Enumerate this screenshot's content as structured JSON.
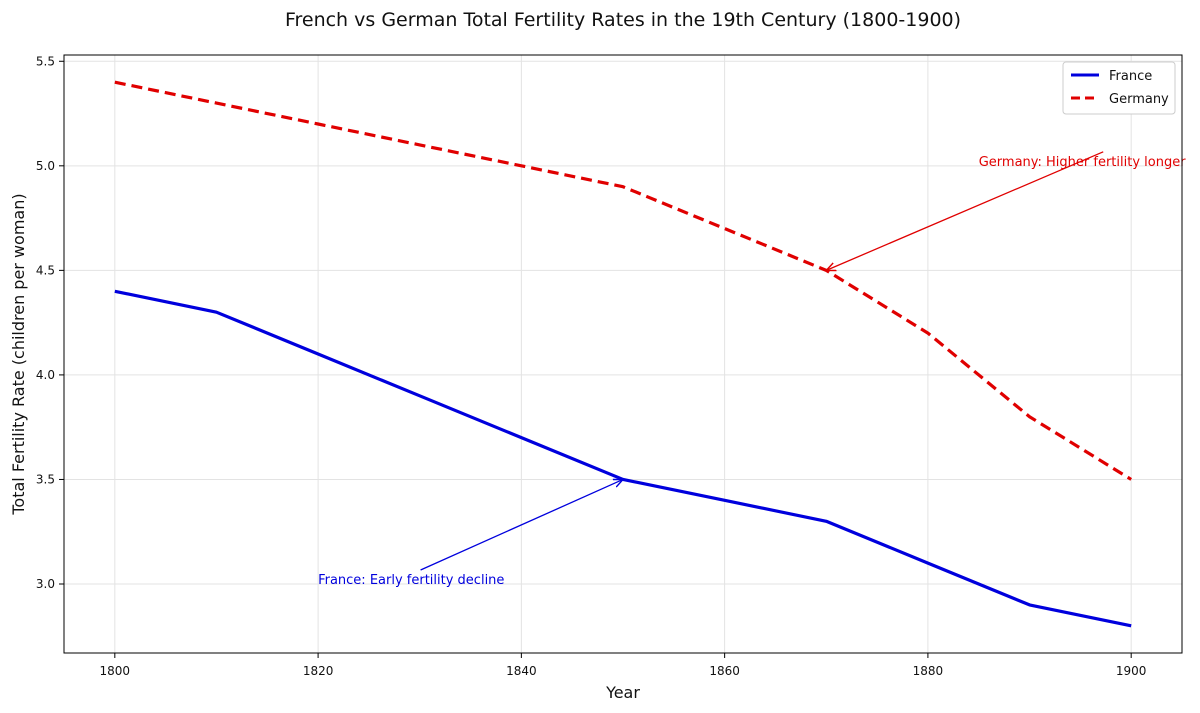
{
  "chart_data": {
    "type": "line",
    "title": "French vs German Total Fertility Rates in the 19th Century (1800-1900)",
    "xlabel": "Year",
    "ylabel": "Total Fertility Rate (children per woman)",
    "xlim": [
      1795,
      1905
    ],
    "ylim": [
      2.67,
      5.53
    ],
    "x_ticks": [
      1800,
      1820,
      1840,
      1860,
      1880,
      1900
    ],
    "y_ticks": [
      3.0,
      3.5,
      4.0,
      4.5,
      5.0,
      5.5
    ],
    "grid": true,
    "legend_position": "top-right",
    "x": [
      1800,
      1810,
      1820,
      1830,
      1840,
      1850,
      1860,
      1870,
      1880,
      1890,
      1900
    ],
    "series": [
      {
        "name": "France",
        "color": "#0000dd",
        "style": "solid",
        "values": [
          4.4,
          4.3,
          4.1,
          3.9,
          3.7,
          3.5,
          3.4,
          3.3,
          3.1,
          2.9,
          2.8
        ]
      },
      {
        "name": "Germany",
        "color": "#e00000",
        "style": "dashed",
        "values": [
          5.4,
          5.3,
          5.2,
          5.1,
          5.0,
          4.9,
          4.7,
          4.5,
          4.2,
          3.8,
          3.5
        ]
      }
    ],
    "annotations": [
      {
        "text": "Germany: Higher fertility longer",
        "color": "#e00000",
        "point": [
          1870,
          4.5
        ],
        "text_at": [
          1885,
          5.0
        ],
        "align": "start"
      },
      {
        "text": "France: Early fertility decline",
        "color": "#0000dd",
        "point": [
          1850,
          3.5
        ],
        "text_at": [
          1820,
          3.0
        ],
        "align": "start"
      }
    ]
  }
}
